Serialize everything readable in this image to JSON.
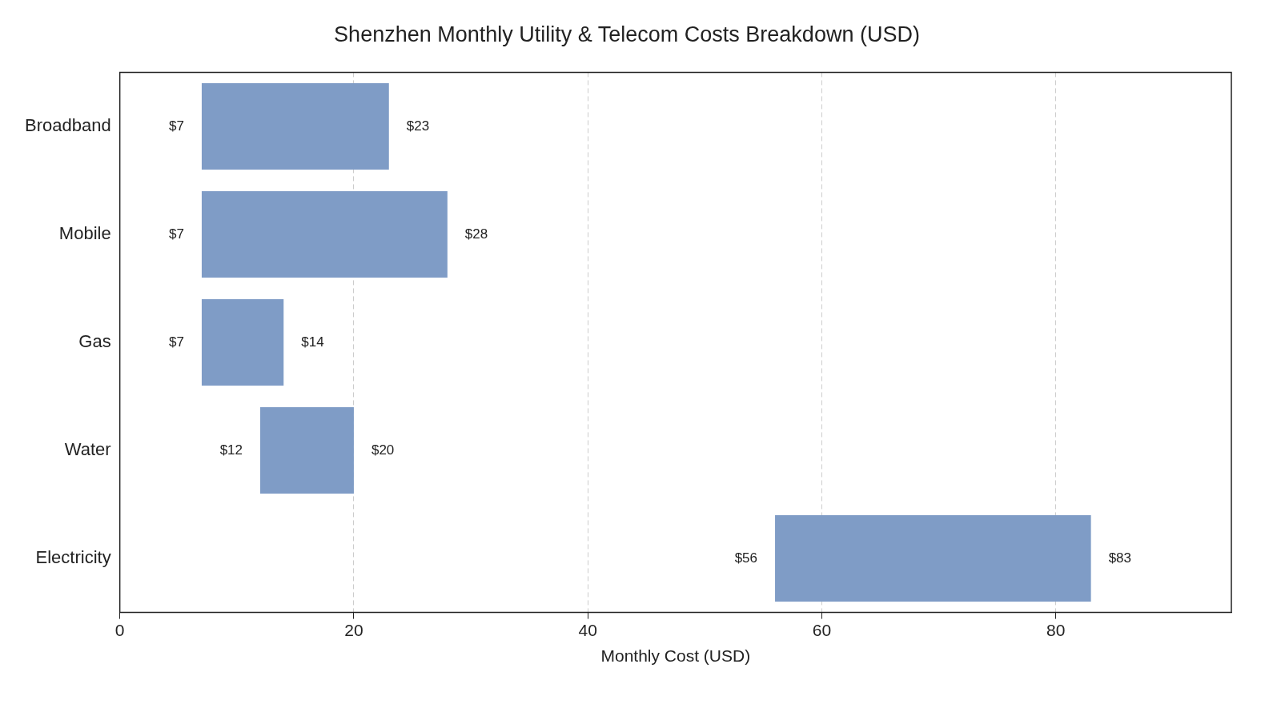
{
  "chart_data": {
    "type": "bar",
    "orientation": "horizontal",
    "title": "Shenzhen Monthly Utility & Telecom Costs Breakdown (USD)",
    "xlabel": "Monthly Cost (USD)",
    "categories": [
      "Broadband",
      "Mobile",
      "Gas",
      "Water",
      "Electricity"
    ],
    "base": [
      7,
      7,
      7,
      12,
      56
    ],
    "values": [
      16,
      21,
      7,
      8,
      27
    ],
    "color": "#7f9cc6",
    "xlim": [
      0,
      95
    ],
    "xticks": [
      0,
      20,
      40,
      60,
      80
    ],
    "grid": "x",
    "annotations": [
      {
        "text": "$7",
        "x": 7,
        "y": "Broadband"
      },
      {
        "text": "$23",
        "x": 23,
        "y": "Broadband"
      },
      {
        "text": "$7",
        "x": 7,
        "y": "Mobile"
      },
      {
        "text": "$28",
        "x": 28,
        "y": "Mobile"
      },
      {
        "text": "$7",
        "x": 7,
        "y": "Gas"
      },
      {
        "text": "$14",
        "x": 14,
        "y": "Gas"
      },
      {
        "text": "$12",
        "x": 12,
        "y": "Water"
      },
      {
        "text": "$20",
        "x": 20,
        "y": "Water"
      },
      {
        "text": "$56",
        "x": 56,
        "y": "Electricity"
      },
      {
        "text": "$83",
        "x": 83,
        "y": "Electricity"
      }
    ]
  }
}
